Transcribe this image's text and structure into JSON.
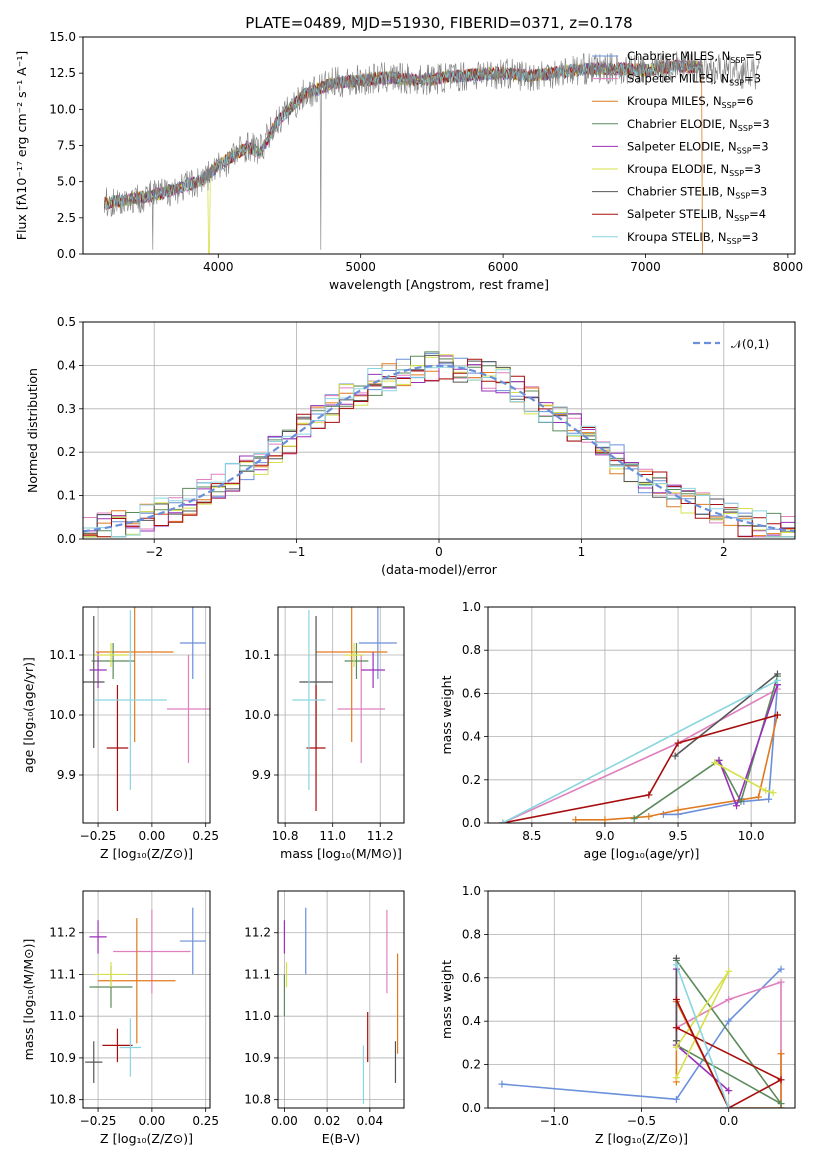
{
  "figure_title": "PLATE=0489, MJD=51930, FIBERID=0371, z=0.178",
  "models": [
    {
      "name": "Chabrier MILES",
      "legend": "Chabrier MILES, N",
      "nssp": "=5",
      "color": "#6a8fdb"
    },
    {
      "name": "Salpeter MILES",
      "legend": "Salpeter MILES, N",
      "nssp": "=3",
      "color": "#e07fbf"
    },
    {
      "name": "Kroupa MILES",
      "legend": "Kroupa MILES, N",
      "nssp": "=6",
      "color": "#e07a1e"
    },
    {
      "name": "Chabrier ELODIE",
      "legend": "Chabrier ELODIE, N",
      "nssp": "=3",
      "color": "#5b8a5b"
    },
    {
      "name": "Salpeter ELODIE",
      "legend": "Salpeter ELODIE, N",
      "nssp": "=3",
      "color": "#9a30b8"
    },
    {
      "name": "Kroupa ELODIE",
      "legend": "Kroupa ELODIE, N",
      "nssp": "=3",
      "color": "#d6e04a"
    },
    {
      "name": "Chabrier STELIB",
      "legend": "Chabrier STELIB, N",
      "nssp": "=3",
      "color": "#555555"
    },
    {
      "name": "Salpeter STELIB",
      "legend": "Salpeter STELIB, N",
      "nssp": "=4",
      "color": "#a80d0d"
    },
    {
      "name": "Kroupa STELIB",
      "legend": "Kroupa STELIB, N",
      "nssp": "=3",
      "color": "#8ad6e0"
    }
  ],
  "chart_data": [
    {
      "id": "spectrum",
      "type": "line",
      "xlabel": "wavelength [Angstrom, rest frame]",
      "ylabel": "Flux [fλ10⁻¹⁷ erg cm⁻² s⁻¹ A⁻¹]",
      "xlim": [
        3050,
        8050
      ],
      "ylim": [
        0,
        15
      ],
      "xticks": [
        4000,
        5000,
        6000,
        7000,
        8000
      ],
      "yticks": [
        0.0,
        2.5,
        5.0,
        7.5,
        10.0,
        12.5,
        15.0
      ],
      "ytick_labels": [
        "0.0",
        "2.5",
        "5.0",
        "7.5",
        "10.0",
        "12.5",
        "15.0"
      ],
      "grid": false,
      "legend_position": "right",
      "data_color": "#7f7f7f",
      "data_x": [
        3200,
        3400,
        3600,
        3800,
        3900,
        4000,
        4200,
        4300,
        4400,
        4600,
        4800,
        5000,
        5200,
        5400,
        5600,
        5800,
        6000,
        6200,
        6400,
        6600,
        6800,
        7000,
        7200,
        7400,
        7600,
        7800
      ],
      "data_y": [
        3.5,
        3.8,
        4.2,
        4.8,
        5.2,
        6.0,
        7.5,
        7.2,
        9.0,
        11.0,
        11.8,
        12.0,
        12.2,
        12.0,
        12.2,
        12.4,
        12.5,
        12.3,
        12.6,
        12.8,
        12.8,
        12.7,
        13.0,
        12.9,
        12.6,
        12.4
      ],
      "model_x": [
        3200,
        3400,
        3600,
        3800,
        3900,
        4000,
        4200,
        4300,
        4400,
        4600,
        4800,
        5000,
        5200,
        5400,
        5600,
        5800,
        6000,
        6200,
        6400,
        6600,
        6800,
        7000,
        7200,
        7400
      ],
      "model_y": [
        3.5,
        3.8,
        4.2,
        4.8,
        5.2,
        6.1,
        7.4,
        7.0,
        9.0,
        11.0,
        11.8,
        12.0,
        12.2,
        12.0,
        12.2,
        12.4,
        12.5,
        12.3,
        12.6,
        12.8,
        12.8,
        12.7,
        13.0,
        12.9
      ]
    },
    {
      "id": "residuals",
      "type": "histogram",
      "xlabel": "(data-model)/error",
      "ylabel": "Normed distribution",
      "xlim": [
        -2.5,
        2.5
      ],
      "ylim": [
        0,
        0.5
      ],
      "xticks": [
        -2,
        -1,
        0,
        1,
        2
      ],
      "xtick_labels": [
        "−2",
        "−1",
        "0",
        "1",
        "2"
      ],
      "yticks": [
        0.0,
        0.1,
        0.2,
        0.3,
        0.4,
        0.5
      ],
      "ytick_labels": [
        "0.0",
        "0.1",
        "0.2",
        "0.3",
        "0.4",
        "0.5"
      ],
      "grid": true,
      "legend_position": "top-right",
      "reference_label": "𝒩(0,1)",
      "reference_color": "#6a8fdb",
      "bin_width": 0.1
    },
    {
      "id": "age_vs_Z",
      "type": "errorbar",
      "xlabel": "Z [log₁₀(Z/Z⊙)]",
      "ylabel": "age  [log₁₀(age/yr)]",
      "xlim": [
        -0.32,
        0.27
      ],
      "ylim": [
        9.82,
        10.18
      ],
      "xticks": [
        -0.25,
        0.0,
        0.25
      ],
      "xtick_labels": [
        "−0.25",
        "0.00",
        "0.25"
      ],
      "yticks": [
        9.9,
        10.0,
        10.1
      ],
      "ytick_labels": [
        "9.9",
        "10.0",
        "10.1"
      ],
      "grid": true,
      "points": [
        {
          "model": 0,
          "x": 0.19,
          "y": 10.12,
          "xerr": 0.06,
          "yerr": 0.06
        },
        {
          "model": 1,
          "x": 0.17,
          "y": 10.01,
          "xerr": 0.1,
          "yerr": 0.09
        },
        {
          "model": 2,
          "x": -0.08,
          "y": 10.105,
          "xerr": 0.18,
          "yerr": 0.15
        },
        {
          "model": 3,
          "x": -0.18,
          "y": 10.09,
          "xerr": 0.1,
          "yerr": 0.03
        },
        {
          "model": 4,
          "x": -0.25,
          "y": 10.075,
          "xerr": 0.04,
          "yerr": 0.03
        },
        {
          "model": 5,
          "x": -0.19,
          "y": 10.1,
          "xerr": 0.08,
          "yerr": 0.02
        },
        {
          "model": 6,
          "x": -0.27,
          "y": 10.055,
          "xerr": 0.05,
          "yerr": 0.11
        },
        {
          "model": 7,
          "x": -0.16,
          "y": 9.945,
          "xerr": 0.05,
          "yerr": 0.105
        },
        {
          "model": 8,
          "x": -0.1,
          "y": 10.025,
          "xerr": 0.17,
          "yerr": 0.15
        }
      ]
    },
    {
      "id": "age_vs_mass",
      "type": "errorbar",
      "xlabel": "mass [log₁₀(M/M⊙)]",
      "ylabel": "",
      "xlim": [
        10.77,
        11.3
      ],
      "ylim": [
        9.82,
        10.18
      ],
      "xticks": [
        10.8,
        11.0,
        11.2
      ],
      "xtick_labels": [
        "10.8",
        "11.0",
        "11.2"
      ],
      "yticks": [
        9.9,
        10.0,
        10.1
      ],
      "ytick_labels": [
        "9.9",
        "10.0",
        "10.1"
      ],
      "grid": true,
      "points": [
        {
          "model": 0,
          "x": 11.19,
          "y": 10.12,
          "xerr": 0.08,
          "yerr": 0.06
        },
        {
          "model": 1,
          "x": 11.12,
          "y": 10.01,
          "xerr": 0.1,
          "yerr": 0.09
        },
        {
          "model": 2,
          "x": 11.08,
          "y": 10.105,
          "xerr": 0.15,
          "yerr": 0.15
        },
        {
          "model": 3,
          "x": 11.1,
          "y": 10.09,
          "xerr": 0.05,
          "yerr": 0.03
        },
        {
          "model": 4,
          "x": 11.17,
          "y": 10.075,
          "xerr": 0.05,
          "yerr": 0.03
        },
        {
          "model": 5,
          "x": 11.09,
          "y": 10.1,
          "xerr": 0.04,
          "yerr": 0.02
        },
        {
          "model": 6,
          "x": 10.93,
          "y": 10.055,
          "xerr": 0.07,
          "yerr": 0.11
        },
        {
          "model": 7,
          "x": 10.93,
          "y": 9.945,
          "xerr": 0.04,
          "yerr": 0.105
        },
        {
          "model": 8,
          "x": 10.9,
          "y": 10.025,
          "xerr": 0.07,
          "yerr": 0.15
        }
      ]
    },
    {
      "id": "mass_vs_Z",
      "type": "errorbar",
      "xlabel": "Z [log₁₀(Z/Z⊙)]",
      "ylabel": "mass [log₁₀(M/M⊙)]",
      "xlim": [
        -0.32,
        0.27
      ],
      "ylim": [
        10.78,
        11.3
      ],
      "xticks": [
        -0.25,
        0.0,
        0.25
      ],
      "xtick_labels": [
        "−0.25",
        "0.00",
        "0.25"
      ],
      "yticks": [
        10.8,
        10.9,
        11.0,
        11.1,
        11.2
      ],
      "ytick_labels": [
        "10.8",
        "10.9",
        "11.0",
        "11.1",
        "11.2"
      ],
      "grid": true,
      "points": [
        {
          "model": 0,
          "x": 0.19,
          "y": 11.18,
          "xerr": 0.06,
          "yerr": 0.08
        },
        {
          "model": 1,
          "x": 0.0,
          "y": 11.155,
          "xerr": 0.18,
          "yerr": 0.1
        },
        {
          "model": 2,
          "x": -0.07,
          "y": 11.085,
          "xerr": 0.18,
          "yerr": 0.15
        },
        {
          "model": 3,
          "x": -0.19,
          "y": 11.07,
          "xerr": 0.1,
          "yerr": 0.05
        },
        {
          "model": 4,
          "x": -0.25,
          "y": 11.19,
          "xerr": 0.04,
          "yerr": 0.04
        },
        {
          "model": 5,
          "x": -0.19,
          "y": 11.1,
          "xerr": 0.08,
          "yerr": 0.03
        },
        {
          "model": 6,
          "x": -0.27,
          "y": 10.89,
          "xerr": 0.04,
          "yerr": 0.05
        },
        {
          "model": 7,
          "x": -0.16,
          "y": 10.93,
          "xerr": 0.07,
          "yerr": 0.04
        },
        {
          "model": 8,
          "x": -0.1,
          "y": 10.925,
          "xerr": 0.05,
          "yerr": 0.07
        }
      ]
    },
    {
      "id": "mass_vs_EBV",
      "type": "errorbar",
      "xlabel": "E(B-V)",
      "ylabel": "",
      "xlim": [
        -0.003,
        0.056
      ],
      "ylim": [
        10.78,
        11.3
      ],
      "xticks": [
        0.0,
        0.02,
        0.04
      ],
      "xtick_labels": [
        "0.00",
        "0.02",
        "0.04"
      ],
      "yticks": [
        10.8,
        10.9,
        11.0,
        11.1,
        11.2
      ],
      "ytick_labels": [
        "10.8",
        "10.9",
        "11.0",
        "11.1",
        "11.2"
      ],
      "grid": true,
      "points": [
        {
          "model": 0,
          "x": 0.01,
          "y": 11.18,
          "xerr": 0,
          "yerr": 0.08
        },
        {
          "model": 1,
          "x": 0.048,
          "y": 11.155,
          "xerr": 0,
          "yerr": 0.1
        },
        {
          "model": 2,
          "x": 0.053,
          "y": 11.03,
          "xerr": 0,
          "yerr": 0.12
        },
        {
          "model": 3,
          "x": 0.0,
          "y": 11.05,
          "xerr": 0,
          "yerr": 0.05
        },
        {
          "model": 4,
          "x": 0.0,
          "y": 11.19,
          "xerr": 0,
          "yerr": 0.04
        },
        {
          "model": 5,
          "x": 0.001,
          "y": 11.1,
          "xerr": 0,
          "yerr": 0.03
        },
        {
          "model": 6,
          "x": 0.052,
          "y": 10.89,
          "xerr": 0,
          "yerr": 0.05
        },
        {
          "model": 7,
          "x": 0.039,
          "y": 10.95,
          "xerr": 0,
          "yerr": 0.06
        },
        {
          "model": 8,
          "x": 0.037,
          "y": 10.86,
          "xerr": 0,
          "yerr": 0.07
        }
      ]
    },
    {
      "id": "mass_weight_vs_age",
      "type": "line",
      "xlabel": "age  [log₁₀(age/yr)]",
      "ylabel": "mass weight",
      "xlim": [
        8.2,
        10.3
      ],
      "ylim": [
        0,
        1
      ],
      "xticks": [
        8.5,
        9.0,
        9.5,
        10.0
      ],
      "xtick_labels": [
        "8.5",
        "9.0",
        "9.5",
        "10.0"
      ],
      "yticks": [
        0.0,
        0.2,
        0.4,
        0.6,
        0.8,
        1.0
      ],
      "ytick_labels": [
        "0.0",
        "0.2",
        "0.4",
        "0.6",
        "0.8",
        "1.0"
      ],
      "grid": true,
      "series": [
        {
          "model": 0,
          "x": [
            9.4,
            9.5,
            9.95,
            10.12,
            10.18
          ],
          "y": [
            0.04,
            0.04,
            0.1,
            0.11,
            0.64
          ]
        },
        {
          "model": 1,
          "x": [
            8.3,
            9.5,
            10.18
          ],
          "y": [
            0.0,
            0.37,
            0.62
          ]
        },
        {
          "model": 2,
          "x": [
            8.8,
            9.0,
            9.3,
            9.5,
            10.05,
            10.18
          ],
          "y": [
            0.015,
            0.015,
            0.03,
            0.06,
            0.12,
            0.5
          ]
        },
        {
          "model": 3,
          "x": [
            9.2,
            9.78,
            9.93,
            10.18
          ],
          "y": [
            0.02,
            0.29,
            0.1,
            0.68
          ]
        },
        {
          "model": 4,
          "x": [
            9.78,
            9.9,
            10.18
          ],
          "y": [
            0.29,
            0.08,
            0.64
          ]
        },
        {
          "model": 5,
          "x": [
            9.75,
            10.1,
            10.15
          ],
          "y": [
            0.28,
            0.15,
            0.14
          ]
        },
        {
          "model": 6,
          "x": [
            9.48,
            10.18
          ],
          "y": [
            0.31,
            0.69
          ]
        },
        {
          "model": 7,
          "x": [
            8.3,
            9.3,
            9.5,
            10.18
          ],
          "y": [
            0.0,
            0.13,
            0.37,
            0.5
          ]
        },
        {
          "model": 8,
          "x": [
            8.3,
            10.18
          ],
          "y": [
            0.0,
            0.66
          ]
        }
      ]
    },
    {
      "id": "mass_weight_vs_Z",
      "type": "line",
      "xlabel": "Z [log₁₀(Z/Z⊙)]",
      "ylabel": "mass weight",
      "xlim": [
        -1.38,
        0.38
      ],
      "ylim": [
        0,
        1
      ],
      "xticks": [
        -1.0,
        -0.5,
        0.0
      ],
      "xtick_labels": [
        "−1.0",
        "−0.5",
        "0.0"
      ],
      "yticks": [
        0.0,
        0.2,
        0.4,
        0.6,
        0.8,
        1.0
      ],
      "ytick_labels": [
        "0.0",
        "0.2",
        "0.4",
        "0.6",
        "0.8",
        "1.0"
      ],
      "grid": true,
      "series": [
        {
          "model": 0,
          "x": [
            -1.3,
            -0.3,
            0.0,
            0.3
          ],
          "y": [
            0.11,
            0.04,
            0.4,
            0.64
          ]
        },
        {
          "model": 1,
          "x": [
            -0.3,
            0.0,
            0.3,
            0.3
          ],
          "y": [
            0.37,
            0.5,
            0.58,
            0.0
          ]
        },
        {
          "model": 2,
          "x": [
            -0.3,
            -0.3,
            0.0,
            0.3,
            0.3
          ],
          "y": [
            0.12,
            0.49,
            0.0,
            0.0,
            0.25
          ]
        },
        {
          "model": 3,
          "x": [
            -0.3,
            0.3,
            -0.3
          ],
          "y": [
            0.68,
            0.02,
            0.29
          ]
        },
        {
          "model": 4,
          "x": [
            -0.3,
            -0.3,
            0.0
          ],
          "y": [
            0.64,
            0.29,
            0.08
          ]
        },
        {
          "model": 5,
          "x": [
            -0.3,
            0.0,
            -0.3
          ],
          "y": [
            0.28,
            0.63,
            0.14
          ]
        },
        {
          "model": 6,
          "x": [
            -0.3,
            -0.3
          ],
          "y": [
            0.31,
            0.69
          ]
        },
        {
          "model": 7,
          "x": [
            -0.3,
            0.0,
            0.3,
            -0.3
          ],
          "y": [
            0.5,
            0.0,
            0.13,
            0.37
          ]
        },
        {
          "model": 8,
          "x": [
            -0.3,
            0.0
          ],
          "y": [
            0.66,
            0.0
          ]
        }
      ]
    }
  ]
}
